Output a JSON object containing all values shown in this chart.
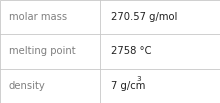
{
  "rows": [
    {
      "label": "molar mass",
      "value": "270.57 g/mol",
      "has_super": false,
      "base": "",
      "super": ""
    },
    {
      "label": "melting point",
      "value": "2758 °C",
      "has_super": false,
      "base": "",
      "super": ""
    },
    {
      "label": "density",
      "value": "7 g/cm",
      "has_super": true,
      "base": "7 g/cm",
      "super": "3"
    }
  ],
  "bg_color": "#ffffff",
  "border_color": "#c8c8c8",
  "label_color": "#808080",
  "value_color": "#222222",
  "label_fontsize": 7.2,
  "value_fontsize": 7.2,
  "super_fontsize": 5.2,
  "col_split": 0.455
}
